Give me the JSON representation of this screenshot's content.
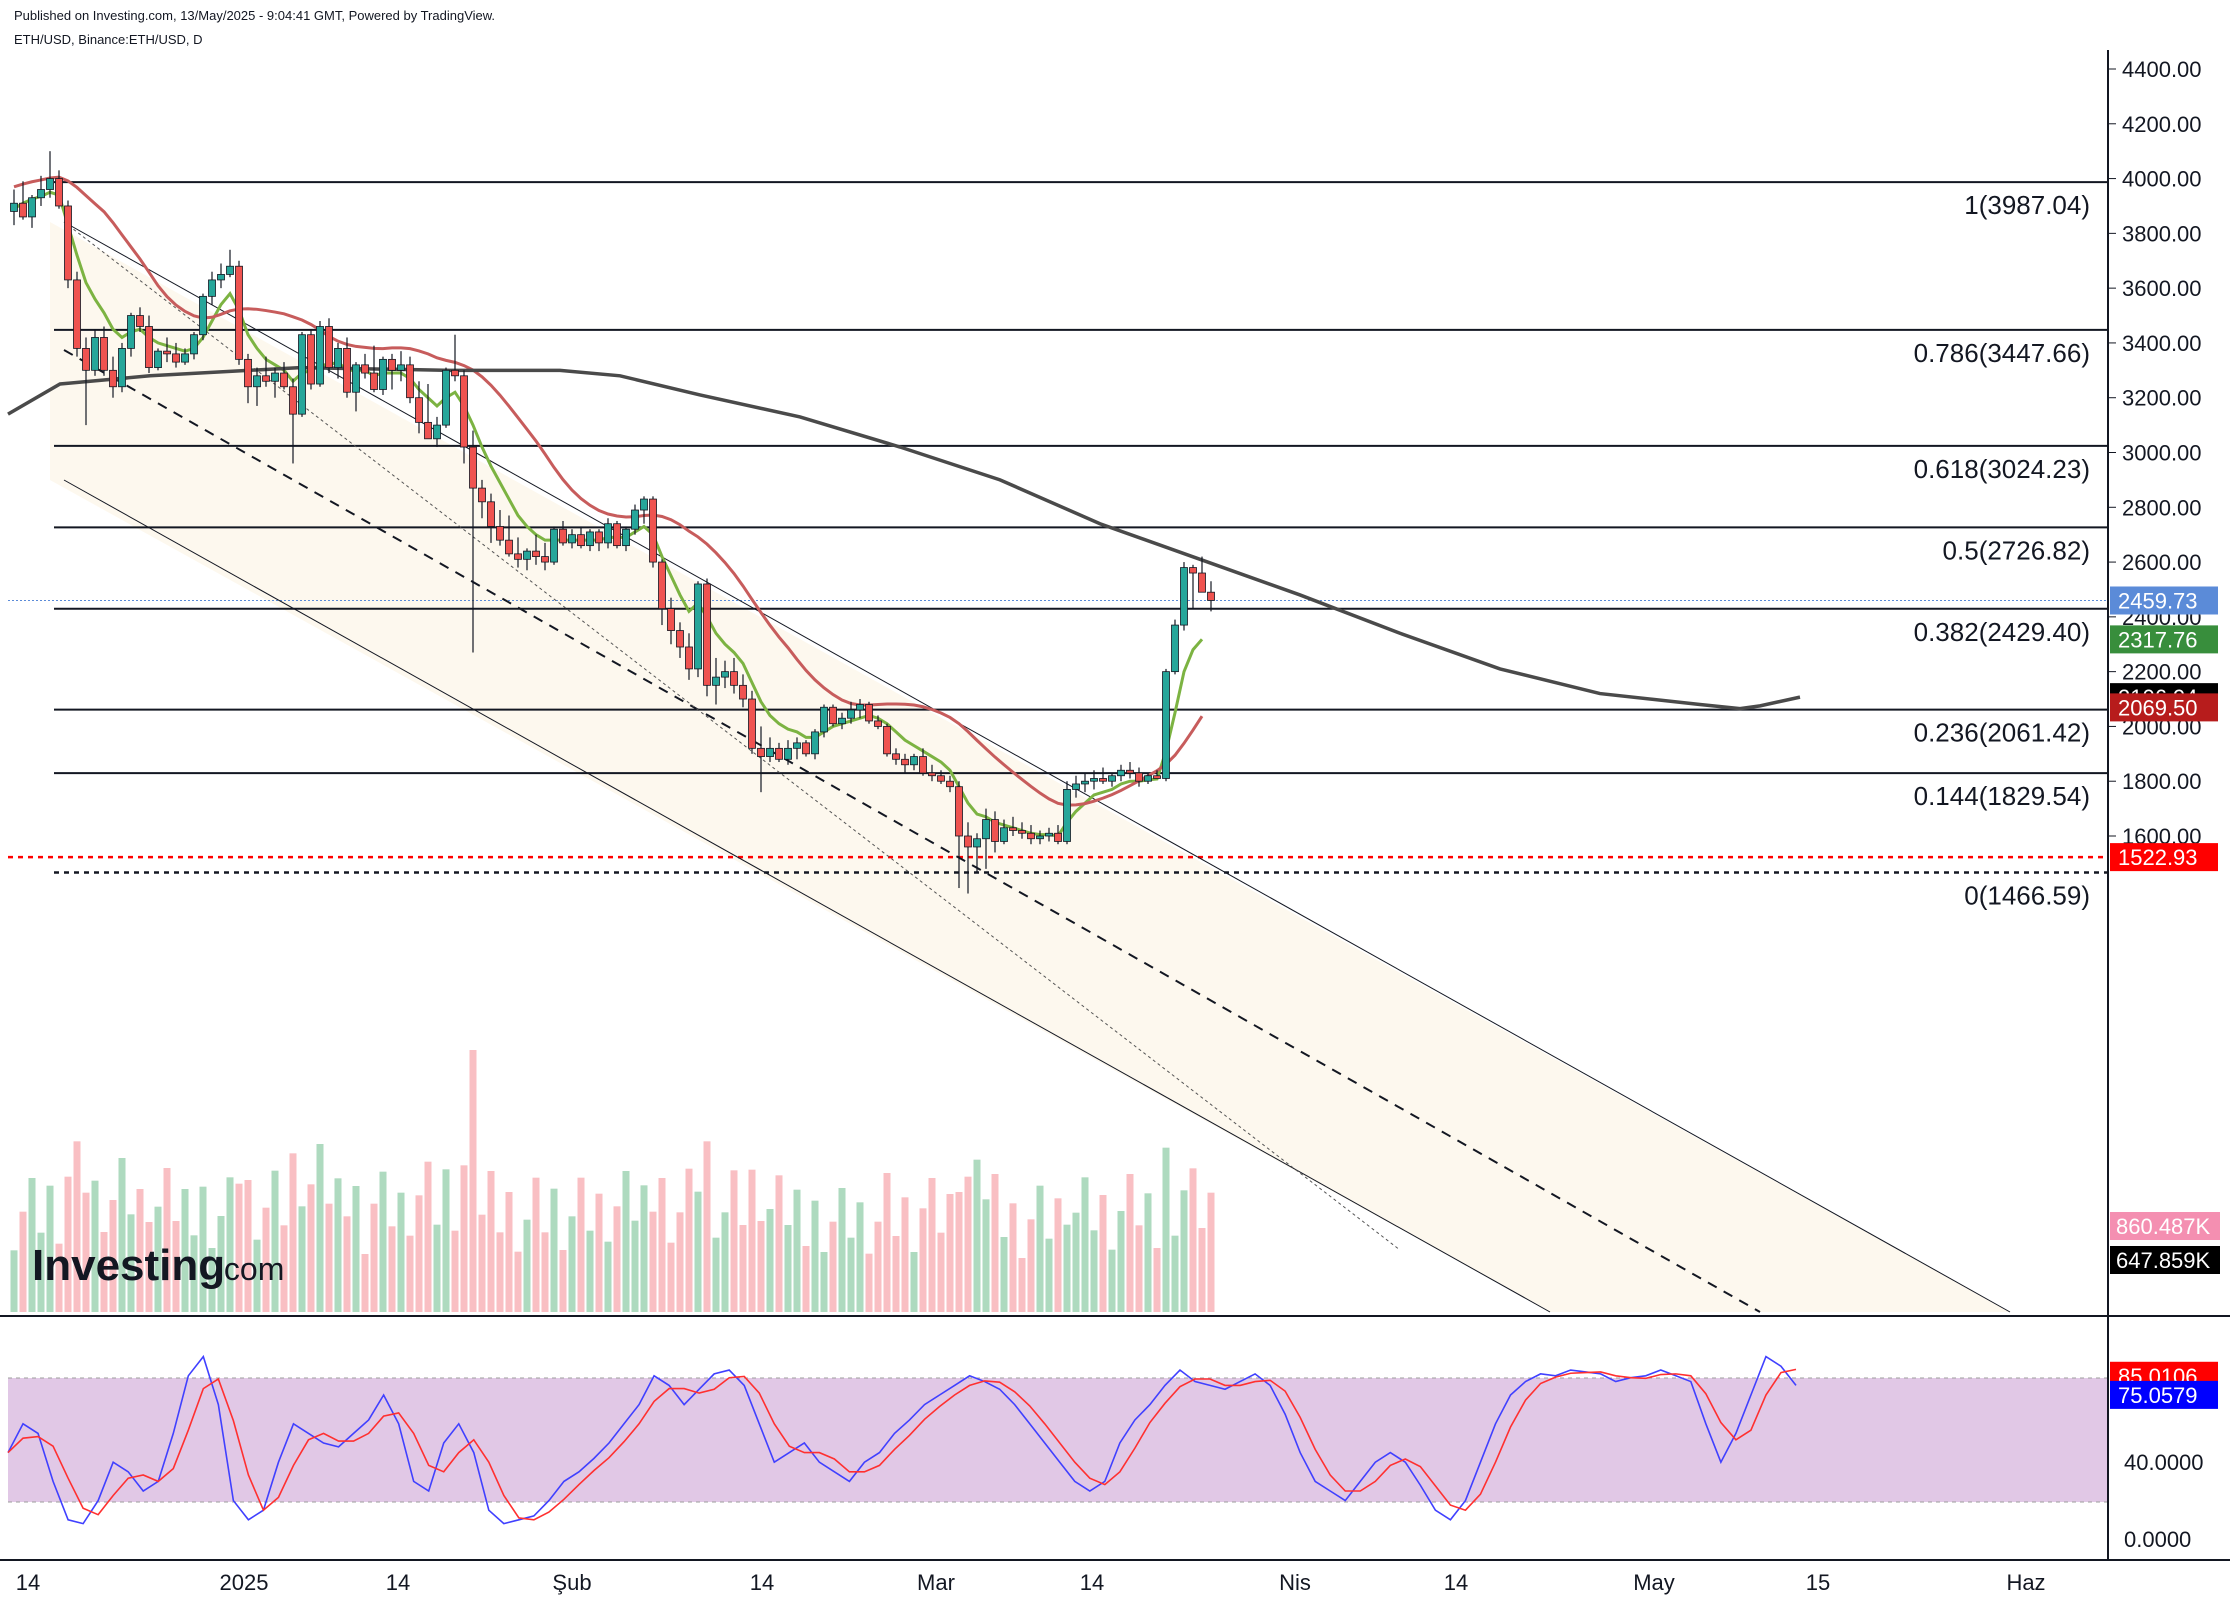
{
  "header": {
    "published": "Published on Investing.com, 13/May/2025 - 9:04:41 GMT, Powered by TradingView.",
    "symbol": "ETH/USD, Binance:ETH/USD, D"
  },
  "logo": {
    "name": "Investing",
    "suffix": ".com"
  },
  "chart_data": {
    "type": "candlestick",
    "title": "",
    "ylim": [
      1300,
      4450
    ],
    "y_ticks": [
      "4400.00",
      "4200.00",
      "4000.00",
      "3800.00",
      "3600.00",
      "3400.00",
      "3200.00",
      "3000.00",
      "2800.00",
      "2600.00",
      "2400.00",
      "2200.00",
      "2000.00",
      "1800.00",
      "1600.00"
    ],
    "x_labels": [
      "14",
      "2025",
      "14",
      "Şub",
      "14",
      "Mar",
      "14",
      "Nis",
      "14",
      "May",
      "15",
      "Haz"
    ],
    "fib_levels": [
      {
        "label": "1(3987.04)",
        "value": 3987.04
      },
      {
        "label": "0.786(3447.66)",
        "value": 3447.66
      },
      {
        "label": "0.618(3024.23)",
        "value": 3024.23
      },
      {
        "label": "0.5(2726.82)",
        "value": 2726.82
      },
      {
        "label": "0.382(2429.40)",
        "value": 2429.4
      },
      {
        "label": "0.236(2061.42)",
        "value": 2061.42
      },
      {
        "label": "0.144(1829.54)",
        "value": 1829.54
      },
      {
        "label": "0(1466.59)",
        "value": 1466.59
      }
    ],
    "support_line": {
      "label": "1522.93",
      "value": 1522.93,
      "color": "#ff0000"
    },
    "last_price": {
      "label": "2459.73",
      "value": 2459.73,
      "color": "#5b8bd8"
    },
    "badges": [
      {
        "label": "2459.73",
        "value": 2459.73,
        "color": "#5b8bd8"
      },
      {
        "label": "2317.76",
        "value": 2317.76,
        "color": "#388e3c"
      },
      {
        "label": "2106.94",
        "value": 2106.94,
        "color": "#000000"
      },
      {
        "label": "2069.50",
        "value": 2069.5,
        "color": "#b71c1c"
      },
      {
        "label": "1522.93",
        "value": 1522.93,
        "color": "#ff0000"
      }
    ],
    "volume_badges": [
      {
        "label": "860.487K",
        "color": "#f48fb1"
      },
      {
        "label": "647.859K",
        "color": "#000000"
      }
    ],
    "ohlc": [
      [
        3880,
        3960,
        3830,
        3910
      ],
      [
        3910,
        3990,
        3850,
        3860
      ],
      [
        3860,
        3940,
        3820,
        3930
      ],
      [
        3930,
        4010,
        3900,
        3960
      ],
      [
        3960,
        4100,
        3930,
        4000
      ],
      [
        4000,
        4030,
        3890,
        3900
      ],
      [
        3900,
        3920,
        3600,
        3630
      ],
      [
        3630,
        3660,
        3350,
        3380
      ],
      [
        3380,
        3420,
        3100,
        3300
      ],
      [
        3300,
        3450,
        3280,
        3420
      ],
      [
        3420,
        3460,
        3280,
        3300
      ],
      [
        3300,
        3350,
        3200,
        3240
      ],
      [
        3240,
        3400,
        3220,
        3380
      ],
      [
        3380,
        3510,
        3350,
        3500
      ],
      [
        3500,
        3530,
        3440,
        3460
      ],
      [
        3460,
        3500,
        3290,
        3310
      ],
      [
        3310,
        3380,
        3300,
        3370
      ],
      [
        3370,
        3420,
        3330,
        3360
      ],
      [
        3360,
        3400,
        3310,
        3330
      ],
      [
        3330,
        3380,
        3320,
        3360
      ],
      [
        3360,
        3440,
        3340,
        3430
      ],
      [
        3430,
        3580,
        3410,
        3570
      ],
      [
        3570,
        3660,
        3540,
        3630
      ],
      [
        3630,
        3690,
        3600,
        3650
      ],
      [
        3650,
        3740,
        3640,
        3680
      ],
      [
        3680,
        3700,
        3320,
        3340
      ],
      [
        3340,
        3360,
        3180,
        3240
      ],
      [
        3240,
        3310,
        3170,
        3280
      ],
      [
        3280,
        3350,
        3240,
        3260
      ],
      [
        3260,
        3310,
        3200,
        3290
      ],
      [
        3290,
        3330,
        3230,
        3240
      ],
      [
        3240,
        3270,
        2960,
        3140
      ],
      [
        3140,
        3440,
        3130,
        3430
      ],
      [
        3430,
        3450,
        3230,
        3250
      ],
      [
        3250,
        3480,
        3240,
        3460
      ],
      [
        3460,
        3490,
        3290,
        3310
      ],
      [
        3310,
        3400,
        3270,
        3380
      ],
      [
        3380,
        3420,
        3200,
        3220
      ],
      [
        3220,
        3330,
        3150,
        3320
      ],
      [
        3320,
        3360,
        3270,
        3290
      ],
      [
        3290,
        3390,
        3220,
        3230
      ],
      [
        3230,
        3350,
        3210,
        3340
      ],
      [
        3340,
        3360,
        3230,
        3300
      ],
      [
        3300,
        3370,
        3260,
        3320
      ],
      [
        3320,
        3350,
        3180,
        3200
      ],
      [
        3200,
        3260,
        3070,
        3110
      ],
      [
        3110,
        3250,
        3080,
        3050
      ],
      [
        3050,
        3130,
        3020,
        3100
      ],
      [
        3100,
        3310,
        3090,
        3300
      ],
      [
        3300,
        3430,
        3260,
        3280
      ],
      [
        3280,
        3300,
        2960,
        3020
      ],
      [
        3020,
        3080,
        2270,
        2870
      ],
      [
        2870,
        2900,
        2760,
        2820
      ],
      [
        2820,
        2850,
        2670,
        2730
      ],
      [
        2730,
        2790,
        2660,
        2680
      ],
      [
        2680,
        2770,
        2620,
        2630
      ],
      [
        2630,
        2690,
        2580,
        2610
      ],
      [
        2610,
        2650,
        2570,
        2640
      ],
      [
        2640,
        2700,
        2590,
        2620
      ],
      [
        2620,
        2670,
        2570,
        2600
      ],
      [
        2600,
        2730,
        2590,
        2720
      ],
      [
        2720,
        2750,
        2660,
        2670
      ],
      [
        2670,
        2720,
        2650,
        2700
      ],
      [
        2700,
        2730,
        2650,
        2660
      ],
      [
        2660,
        2720,
        2640,
        2710
      ],
      [
        2710,
        2720,
        2640,
        2670
      ],
      [
        2670,
        2760,
        2650,
        2740
      ],
      [
        2740,
        2750,
        2650,
        2660
      ],
      [
        2660,
        2730,
        2640,
        2720
      ],
      [
        2720,
        2810,
        2700,
        2790
      ],
      [
        2790,
        2840,
        2740,
        2830
      ],
      [
        2830,
        2840,
        2580,
        2600
      ],
      [
        2600,
        2610,
        2370,
        2430
      ],
      [
        2430,
        2470,
        2300,
        2350
      ],
      [
        2350,
        2380,
        2250,
        2290
      ],
      [
        2290,
        2340,
        2170,
        2210
      ],
      [
        2210,
        2530,
        2180,
        2520
      ],
      [
        2520,
        2540,
        2110,
        2150
      ],
      [
        2150,
        2250,
        2080,
        2180
      ],
      [
        2180,
        2240,
        2140,
        2200
      ],
      [
        2200,
        2250,
        2120,
        2150
      ],
      [
        2150,
        2190,
        2070,
        2100
      ],
      [
        2100,
        2130,
        1900,
        1920
      ],
      [
        1920,
        2000,
        1760,
        1890
      ],
      [
        1890,
        1960,
        1870,
        1920
      ],
      [
        1920,
        1940,
        1870,
        1880
      ],
      [
        1880,
        1950,
        1860,
        1920
      ],
      [
        1920,
        1960,
        1880,
        1940
      ],
      [
        1940,
        1950,
        1890,
        1900
      ],
      [
        1900,
        1990,
        1880,
        1980
      ],
      [
        1980,
        2080,
        1960,
        2070
      ],
      [
        2070,
        2080,
        2000,
        2010
      ],
      [
        2010,
        2050,
        1990,
        2030
      ],
      [
        2030,
        2090,
        2010,
        2060
      ],
      [
        2060,
        2100,
        2030,
        2080
      ],
      [
        2080,
        2090,
        2010,
        2020
      ],
      [
        2020,
        2040,
        1990,
        2000
      ],
      [
        2000,
        2010,
        1890,
        1900
      ],
      [
        1900,
        1920,
        1860,
        1880
      ],
      [
        1880,
        1900,
        1830,
        1860
      ],
      [
        1860,
        1900,
        1840,
        1890
      ],
      [
        1890,
        1920,
        1820,
        1830
      ],
      [
        1830,
        1860,
        1800,
        1820
      ],
      [
        1820,
        1840,
        1790,
        1800
      ],
      [
        1800,
        1820,
        1760,
        1780
      ],
      [
        1780,
        1800,
        1410,
        1600
      ],
      [
        1600,
        1650,
        1390,
        1560
      ],
      [
        1560,
        1610,
        1470,
        1590
      ],
      [
        1590,
        1700,
        1480,
        1660
      ],
      [
        1660,
        1690,
        1540,
        1580
      ],
      [
        1580,
        1660,
        1570,
        1630
      ],
      [
        1630,
        1670,
        1600,
        1620
      ],
      [
        1620,
        1650,
        1590,
        1610
      ],
      [
        1610,
        1640,
        1570,
        1590
      ],
      [
        1590,
        1620,
        1570,
        1600
      ],
      [
        1600,
        1630,
        1580,
        1610
      ],
      [
        1610,
        1640,
        1570,
        1580
      ],
      [
        1580,
        1800,
        1570,
        1770
      ],
      [
        1770,
        1820,
        1740,
        1790
      ],
      [
        1790,
        1830,
        1760,
        1800
      ],
      [
        1800,
        1840,
        1770,
        1810
      ],
      [
        1810,
        1850,
        1790,
        1800
      ],
      [
        1800,
        1830,
        1780,
        1820
      ],
      [
        1820,
        1860,
        1800,
        1840
      ],
      [
        1840,
        1870,
        1810,
        1830
      ],
      [
        1830,
        1850,
        1780,
        1800
      ],
      [
        1800,
        1830,
        1790,
        1820
      ],
      [
        1820,
        1840,
        1810,
        1810
      ],
      [
        1810,
        2210,
        1800,
        2200
      ],
      [
        2200,
        2390,
        2190,
        2370
      ],
      [
        2370,
        2600,
        2350,
        2580
      ],
      [
        2580,
        2590,
        2430,
        2560
      ],
      [
        2560,
        2620,
        2500,
        2490
      ],
      [
        2490,
        2530,
        2420,
        2460
      ]
    ],
    "ema_short": [
      3890,
      3910,
      3925,
      3935,
      3950,
      3940,
      3830,
      3720,
      3620,
      3560,
      3510,
      3450,
      3420,
      3440,
      3450,
      3420,
      3400,
      3390,
      3380,
      3370,
      3380,
      3420,
      3480,
      3540,
      3580,
      3520,
      3430,
      3380,
      3340,
      3320,
      3300,
      3260,
      3290,
      3300,
      3320,
      3320,
      3330,
      3300,
      3300,
      3300,
      3280,
      3290,
      3290,
      3290,
      3270,
      3230,
      3200,
      3170,
      3200,
      3220,
      3170,
      3100,
      3020,
      2950,
      2890,
      2830,
      2770,
      2730,
      2700,
      2680,
      2680,
      2680,
      2680,
      2680,
      2680,
      2680,
      2690,
      2690,
      2690,
      2710,
      2730,
      2700,
      2620,
      2550,
      2480,
      2420,
      2450,
      2400,
      2340,
      2300,
      2270,
      2230,
      2160,
      2090,
      2040,
      2010,
      1990,
      1980,
      1960,
      1960,
      1980,
      2000,
      2010,
      2020,
      2030,
      2040,
      2030,
      2010,
      1980,
      1950,
      1930,
      1910,
      1890,
      1870,
      1840,
      1780,
      1720,
      1680,
      1670,
      1650,
      1640,
      1630,
      1620,
      1610,
      1605,
      1605,
      1600,
      1650,
      1690,
      1720,
      1750,
      1760,
      1770,
      1790,
      1800,
      1800,
      1805,
      1808,
      1910,
      2050,
      2200,
      2280,
      2318
    ]
  }
}
